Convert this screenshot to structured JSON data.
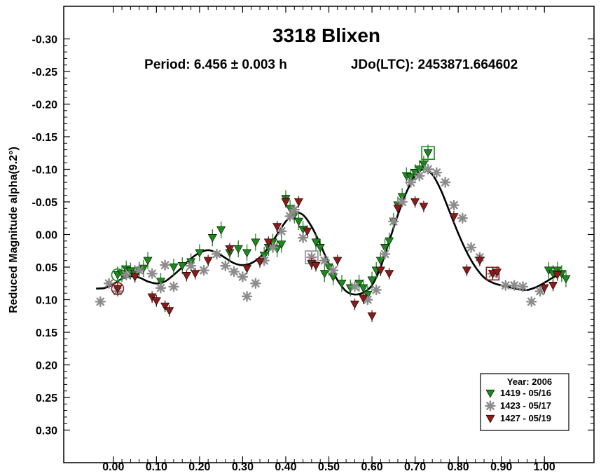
{
  "chart_data": {
    "type": "scatter",
    "title": "3318 Blixen",
    "period_text": "Period: 6.456 ± 0.003 h",
    "epoch_text": "JDo(LTC): 2453871.664602",
    "xlabel": "",
    "ylabel": "Reduced Magnitude alpha(9.2°)",
    "xlim": [
      -0.115,
      1.115
    ],
    "ylim": [
      -0.35,
      0.35
    ],
    "y_inverted": true,
    "x_ticks": [
      0.0,
      0.1,
      0.2,
      0.3,
      0.4,
      0.5,
      0.6,
      0.7,
      0.8,
      0.9,
      1.0
    ],
    "x_tick_labels": [
      "0.00",
      "0.10",
      "0.20",
      "0.30",
      "0.40",
      "0.50",
      "0.60",
      "0.70",
      "0.80",
      "0.90",
      "1.00"
    ],
    "y_ticks": [
      -0.3,
      -0.25,
      -0.2,
      -0.15,
      -0.1,
      -0.05,
      0.0,
      0.05,
      0.1,
      0.15,
      0.2,
      0.25,
      0.3
    ],
    "y_tick_labels": [
      "-0.30",
      "-0.25",
      "-0.20",
      "-0.15",
      "-0.10",
      "-0.05",
      "0.00",
      "0.05",
      "0.10",
      "0.15",
      "0.20",
      "0.25",
      "0.30"
    ],
    "legend": {
      "title": "Year: 2006",
      "position": "bottom-right",
      "entries": [
        {
          "label": "1419 - 05/16",
          "series": "s1419"
        },
        {
          "label": "1423 - 05/17",
          "series": "s1423"
        },
        {
          "label": "1427 - 05/19",
          "series": "s1427"
        }
      ]
    },
    "fit_curve": {
      "name": "Fourier fit",
      "color": "#000000",
      "x": [
        -0.04,
        -0.02,
        0.0,
        0.02,
        0.04,
        0.06,
        0.08,
        0.1,
        0.12,
        0.14,
        0.16,
        0.18,
        0.2,
        0.22,
        0.24,
        0.26,
        0.28,
        0.3,
        0.32,
        0.34,
        0.36,
        0.38,
        0.4,
        0.42,
        0.44,
        0.46,
        0.48,
        0.5,
        0.52,
        0.54,
        0.56,
        0.58,
        0.6,
        0.62,
        0.64,
        0.66,
        0.68,
        0.7,
        0.72,
        0.74,
        0.76,
        0.78,
        0.8,
        0.82,
        0.84,
        0.86,
        0.88,
        0.9,
        0.92,
        0.94,
        0.96,
        0.98,
        1.0,
        1.02,
        1.04
      ],
      "y": [
        0.083,
        0.082,
        0.076,
        0.068,
        0.064,
        0.066,
        0.072,
        0.075,
        0.072,
        0.062,
        0.05,
        0.037,
        0.028,
        0.024,
        0.028,
        0.036,
        0.044,
        0.047,
        0.044,
        0.035,
        0.02,
        0.0,
        -0.02,
        -0.033,
        -0.03,
        -0.012,
        0.015,
        0.045,
        0.07,
        0.087,
        0.092,
        0.089,
        0.078,
        0.05,
        0.01,
        -0.03,
        -0.065,
        -0.09,
        -0.1,
        -0.092,
        -0.068,
        -0.035,
        -0.002,
        0.027,
        0.05,
        0.066,
        0.074,
        0.078,
        0.081,
        0.084,
        0.085,
        0.081,
        0.074,
        0.066,
        0.06
      ]
    },
    "series": [
      {
        "name": "1419 - 05/16",
        "key": "s1419",
        "marker": "triangle-down",
        "color": "#1a8a1a",
        "error": 0.013,
        "x": [
          0.01,
          0.02,
          0.03,
          0.04,
          0.05,
          0.06,
          0.07,
          0.08,
          0.11,
          0.14,
          0.16,
          0.18,
          0.2,
          0.23,
          0.25,
          0.27,
          0.29,
          0.31,
          0.33,
          0.35,
          0.36,
          0.37,
          0.38,
          0.39,
          0.4,
          0.41,
          0.42,
          0.43,
          0.44,
          0.47,
          0.48,
          0.49,
          0.5,
          0.51,
          0.53,
          0.55,
          0.57,
          0.58,
          0.59,
          0.6,
          0.61,
          0.62,
          0.63,
          0.64,
          0.65,
          0.66,
          0.67,
          0.68,
          0.69,
          0.7,
          0.71,
          0.72,
          0.73,
          1.01,
          1.02,
          1.03,
          1.04,
          1.05
        ],
        "y": [
          0.062,
          0.06,
          0.053,
          0.056,
          0.06,
          0.055,
          0.052,
          0.04,
          0.072,
          0.05,
          0.048,
          0.042,
          0.028,
          0.005,
          -0.007,
          0.028,
          0.022,
          0.028,
          0.012,
          0.032,
          0.02,
          0.012,
          0.022,
          0.015,
          -0.055,
          -0.04,
          -0.03,
          -0.02,
          -0.008,
          0.012,
          0.02,
          0.06,
          0.05,
          0.065,
          0.075,
          0.082,
          0.075,
          0.082,
          0.092,
          0.07,
          0.055,
          0.04,
          0.02,
          0.01,
          -0.02,
          -0.045,
          -0.058,
          -0.09,
          -0.088,
          -0.095,
          -0.1,
          -0.108,
          -0.125,
          0.055,
          0.06,
          0.055,
          0.06,
          0.068
        ],
        "circled_index": 0,
        "boxed_index": 52
      },
      {
        "name": "1423 - 05/17",
        "key": "s1423",
        "marker": "star",
        "color": "#8c8c8c",
        "error": 0.0,
        "x": [
          -0.03,
          -0.01,
          0.01,
          0.03,
          0.06,
          0.09,
          0.11,
          0.12,
          0.14,
          0.18,
          0.21,
          0.24,
          0.26,
          0.28,
          0.3,
          0.31,
          0.33,
          0.35,
          0.37,
          0.39,
          0.41,
          0.42,
          0.44,
          0.46,
          0.49,
          0.51,
          0.56,
          0.59,
          0.61,
          0.63,
          0.65,
          0.67,
          0.69,
          0.71,
          0.73,
          0.75,
          0.77,
          0.79,
          0.81,
          0.83,
          0.85,
          0.88,
          0.91,
          0.93,
          0.95,
          0.97,
          0.99
        ],
        "y": [
          0.103,
          0.075,
          0.087,
          0.062,
          0.055,
          0.06,
          0.082,
          0.047,
          0.08,
          0.048,
          0.055,
          0.03,
          0.048,
          0.057,
          0.065,
          0.095,
          0.075,
          0.04,
          0.02,
          -0.005,
          -0.028,
          -0.038,
          0.005,
          0.035,
          0.04,
          0.055,
          0.08,
          0.1,
          0.085,
          0.03,
          -0.02,
          -0.05,
          -0.08,
          -0.09,
          -0.1,
          -0.095,
          -0.08,
          -0.045,
          -0.025,
          0.02,
          0.035,
          0.06,
          0.078,
          0.078,
          0.08,
          0.103,
          0.087
        ],
        "boxed_index": 23
      },
      {
        "name": "1427 - 05/19",
        "key": "s1427",
        "marker": "triangle-down",
        "color": "#8b1a1a",
        "error": 0.009,
        "x": [
          0.01,
          0.05,
          0.09,
          0.1,
          0.12,
          0.13,
          0.17,
          0.19,
          0.22,
          0.27,
          0.31,
          0.34,
          0.36,
          0.38,
          0.4,
          0.43,
          0.45,
          0.46,
          0.47,
          0.52,
          0.56,
          0.58,
          0.6,
          0.62,
          0.64,
          0.66,
          0.7,
          0.72,
          0.79,
          0.82,
          0.85,
          0.88,
          0.89,
          1.0,
          1.02,
          1.03
        ],
        "y": [
          0.083,
          0.065,
          0.096,
          0.102,
          0.11,
          0.117,
          0.063,
          0.06,
          0.04,
          0.022,
          0.052,
          0.042,
          0.012,
          -0.012,
          -0.05,
          -0.05,
          -0.005,
          0.045,
          0.048,
          0.04,
          0.107,
          0.098,
          0.125,
          0.055,
          0.06,
          -0.04,
          -0.05,
          -0.043,
          -0.027,
          0.055,
          0.04,
          0.06,
          0.058,
          0.082,
          0.078,
          0.062
        ],
        "circled_index": 0,
        "boxed_index": 31
      }
    ]
  }
}
